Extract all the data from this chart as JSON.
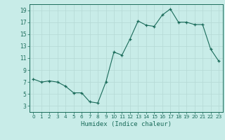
{
  "x": [
    0,
    1,
    2,
    3,
    4,
    5,
    6,
    7,
    8,
    9,
    10,
    11,
    12,
    13,
    14,
    15,
    16,
    17,
    18,
    19,
    20,
    21,
    22,
    23
  ],
  "y": [
    7.5,
    7.0,
    7.2,
    7.0,
    6.3,
    5.2,
    5.2,
    3.7,
    3.5,
    7.0,
    12.0,
    11.5,
    14.2,
    17.2,
    16.5,
    16.3,
    18.2,
    19.2,
    17.0,
    17.0,
    16.6,
    16.6,
    12.5,
    10.5
  ],
  "xlim": [
    -0.5,
    23.5
  ],
  "ylim": [
    2,
    20
  ],
  "yticks": [
    3,
    5,
    7,
    9,
    11,
    13,
    15,
    17,
    19
  ],
  "xticks": [
    0,
    1,
    2,
    3,
    4,
    5,
    6,
    7,
    8,
    9,
    10,
    11,
    12,
    13,
    14,
    15,
    16,
    17,
    18,
    19,
    20,
    21,
    22,
    23
  ],
  "xlabel": "Humidex (Indice chaleur)",
  "line_color": "#1a6b5a",
  "marker": "+",
  "bg_color": "#c8ece8",
  "grid_color": "#b5d9d5",
  "axis_color": "#1a6b5a",
  "tick_color": "#1a6b5a",
  "label_color": "#1a6b5a"
}
